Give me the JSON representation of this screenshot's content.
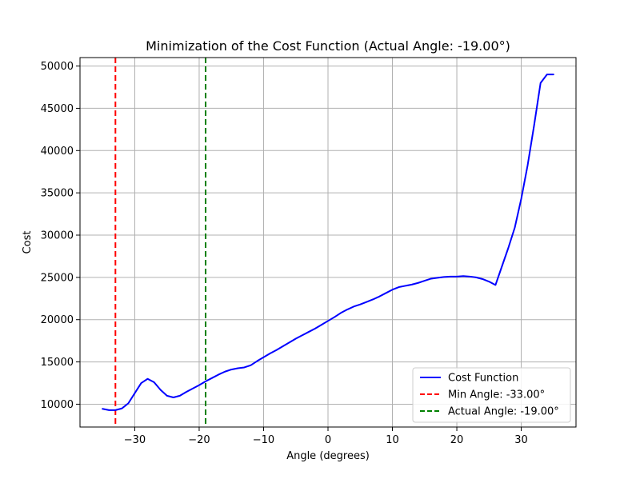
{
  "chart_data": {
    "type": "line",
    "title": "Minimization of the Cost Function (Actual Angle: -19.00°)",
    "xlabel": "Angle (degrees)",
    "ylabel": "Cost",
    "xlim": [
      -38.5,
      38.5
    ],
    "ylim": [
      7300,
      51000
    ],
    "grid": true,
    "legend_position": "lower-right",
    "x_ticks": [
      -30,
      -20,
      -10,
      0,
      10,
      20,
      30
    ],
    "x_tick_labels": [
      "−30",
      "−20",
      "−10",
      "0",
      "10",
      "20",
      "30"
    ],
    "y_ticks": [
      10000,
      15000,
      20000,
      25000,
      30000,
      35000,
      40000,
      45000,
      50000
    ],
    "y_tick_labels": [
      "10000",
      "15000",
      "20000",
      "25000",
      "30000",
      "35000",
      "40000",
      "45000",
      "50000"
    ],
    "series": [
      {
        "name": "Cost Function",
        "color": "#0000ff",
        "style": "solid",
        "x": [
          -35,
          -34,
          -33,
          -32,
          -31,
          -30,
          -29,
          -28,
          -27,
          -26,
          -25,
          -24,
          -23,
          -22,
          -21,
          -20,
          -19,
          -18,
          -17,
          -16,
          -15,
          -14,
          -13,
          -12,
          -11,
          -10,
          -9,
          -8,
          -7,
          -6,
          -5,
          -4,
          -3,
          -2,
          -1,
          0,
          1,
          2,
          3,
          4,
          5,
          6,
          7,
          8,
          9,
          10,
          11,
          12,
          13,
          14,
          15,
          16,
          17,
          18,
          19,
          20,
          21,
          22,
          23,
          24,
          25,
          26,
          27,
          28,
          29,
          30,
          31,
          32,
          33,
          34,
          35
        ],
        "y": [
          9450,
          9300,
          9300,
          9500,
          10100,
          11300,
          12500,
          13000,
          12600,
          11700,
          11000,
          10800,
          11000,
          11450,
          11850,
          12250,
          12700,
          13100,
          13500,
          13850,
          14100,
          14250,
          14350,
          14600,
          15100,
          15550,
          16000,
          16400,
          16850,
          17300,
          17750,
          18150,
          18550,
          18950,
          19400,
          19850,
          20300,
          20800,
          21200,
          21550,
          21800,
          22100,
          22400,
          22750,
          23150,
          23550,
          23850,
          24000,
          24150,
          24350,
          24600,
          24850,
          24950,
          25050,
          25100,
          25100,
          25150,
          25100,
          25000,
          24800,
          24500,
          24100,
          26300,
          28500,
          30900,
          34300,
          38300,
          43000,
          48000,
          49000,
          49000
        ]
      }
    ],
    "vlines": [
      {
        "name": "Min Angle: -33.00°",
        "x": -33,
        "color": "#ff0000",
        "style": "dashed"
      },
      {
        "name": "Actual Angle: -19.00°",
        "x": -19,
        "color": "#008000",
        "style": "dashed"
      }
    ]
  }
}
